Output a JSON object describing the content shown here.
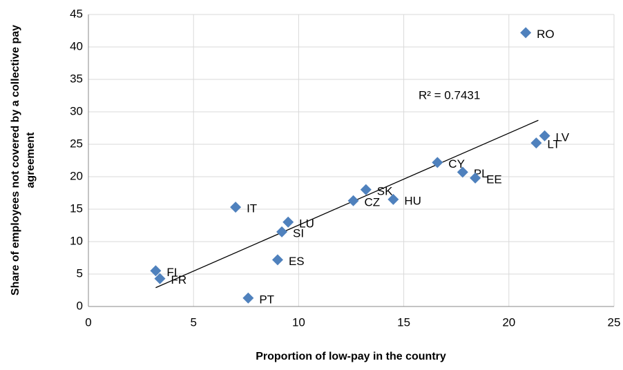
{
  "chart_data": {
    "type": "scatter",
    "xlabel": "Proportion of low-pay in the country",
    "ylabel": "Share of employees not covered by a collective pay agreement",
    "annotation": "R² = 0.7431",
    "color": "#4f81bd",
    "points": [
      "RO",
      "LV",
      "LT",
      "CY",
      "PL",
      "EE",
      "SK",
      "CZ",
      "HU",
      "IT",
      "LU",
      "SI",
      "ES",
      "FI",
      "FR",
      "PT"
    ],
    "x": [
      20.8,
      21.7,
      21.3,
      16.6,
      17.8,
      18.4,
      13.2,
      12.6,
      14.5,
      7.0,
      9.5,
      9.2,
      9.0,
      3.2,
      3.4,
      7.6
    ],
    "y": [
      42.2,
      26.3,
      25.2,
      22.2,
      20.7,
      19.8,
      18.0,
      16.3,
      16.5,
      15.3,
      13.0,
      11.5,
      7.2,
      5.5,
      4.3,
      1.3
    ],
    "trendline": {
      "x": [
        3.2,
        21.4
      ],
      "y": [
        2.9,
        28.7
      ]
    },
    "xlim": [
      0,
      25
    ],
    "xticks": [
      0,
      5,
      10,
      15,
      20,
      25
    ],
    "ylim": [
      0,
      45
    ],
    "yticks": [
      0,
      5,
      10,
      15,
      20,
      25,
      30,
      35,
      40,
      45
    ],
    "grid": true
  }
}
